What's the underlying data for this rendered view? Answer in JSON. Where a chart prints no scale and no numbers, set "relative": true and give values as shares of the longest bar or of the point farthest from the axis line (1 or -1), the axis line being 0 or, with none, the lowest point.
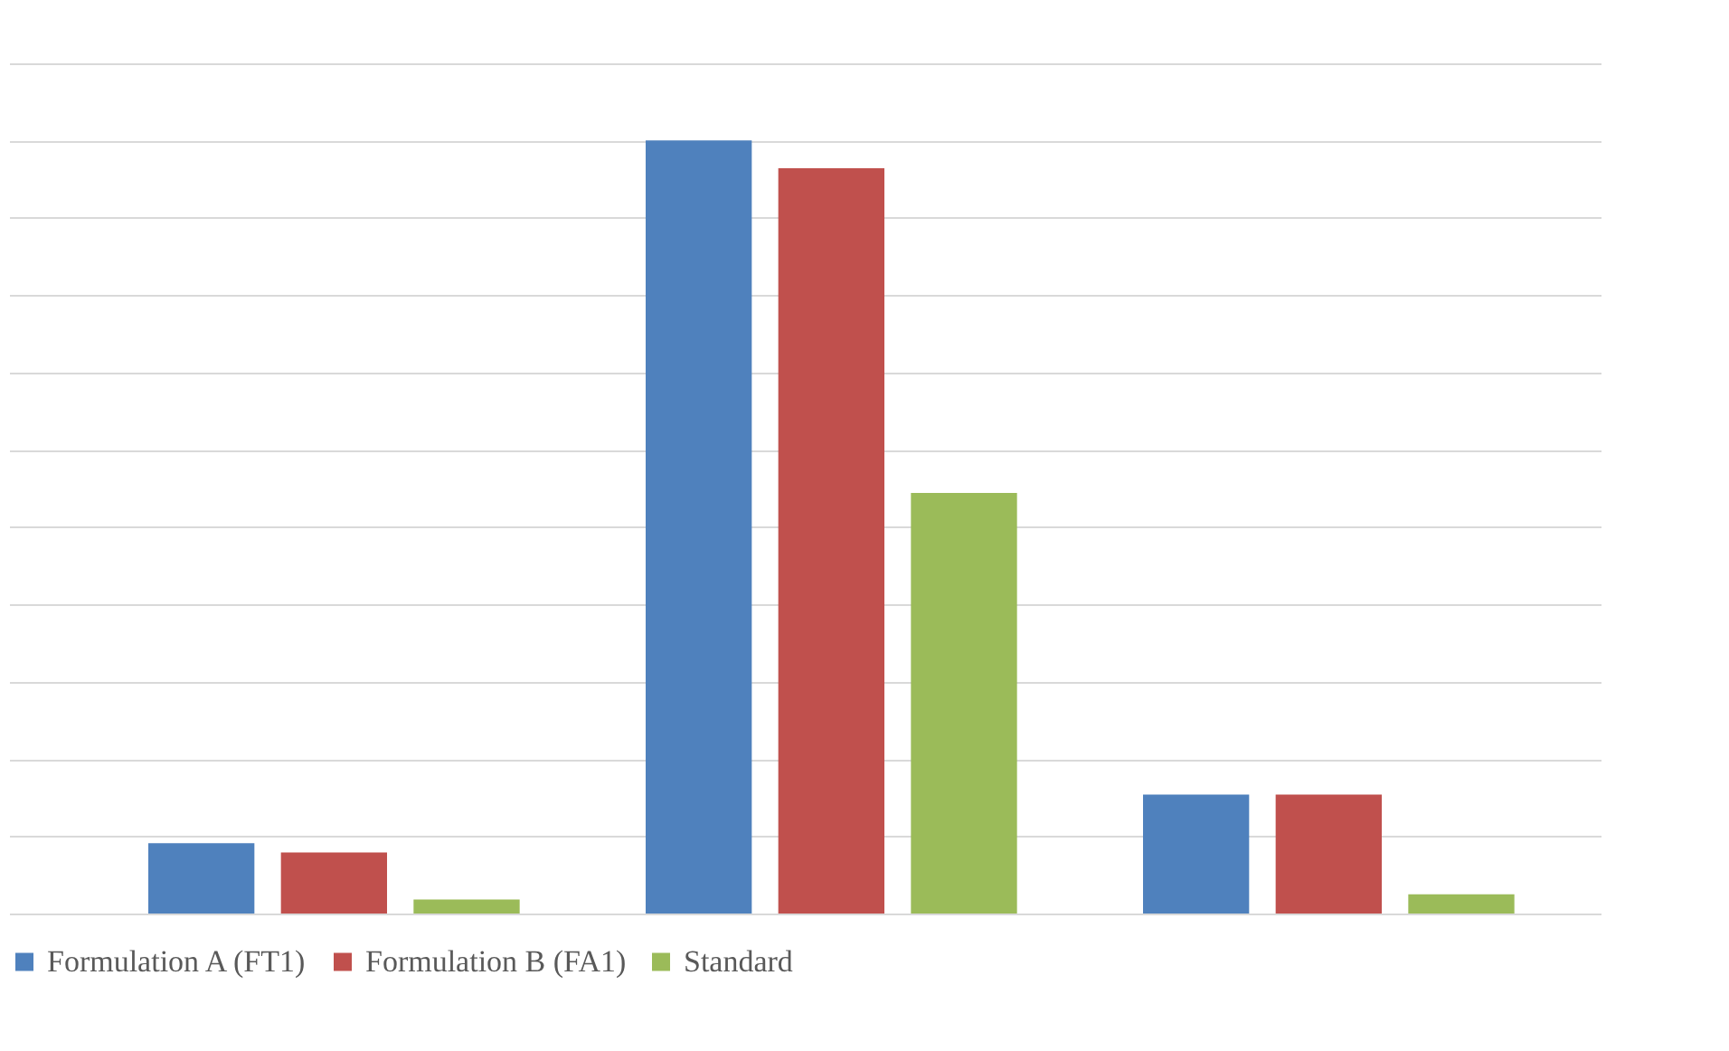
{
  "chart_data": {
    "type": "bar",
    "relative": true,
    "categories": [
      null,
      null,
      null
    ],
    "series": [
      {
        "name": "Formulation A (FT1)",
        "color": "#4f81bd",
        "values": [
          0.091,
          1,
          0.154
        ]
      },
      {
        "name": "Formulation B (FA1)",
        "color": "#c0504d",
        "values": [
          0.079,
          0.964,
          0.154
        ]
      },
      {
        "name": "Standard",
        "color": "#9bbb59",
        "values": [
          0.018,
          0.544,
          0.025
        ]
      }
    ],
    "grid": "y",
    "legend": "bottom",
    "tick_labels": false
  }
}
